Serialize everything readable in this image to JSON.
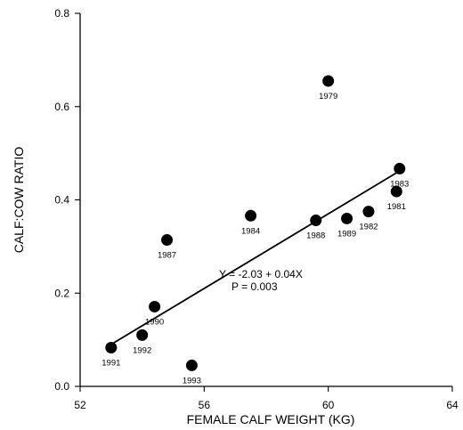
{
  "chart_data": {
    "type": "scatter",
    "title": "",
    "xlabel": "FEMALE CALF WEIGHT (KG)",
    "ylabel": "CALF:COW RATIO",
    "xlim": [
      52,
      64
    ],
    "ylim": [
      0.0,
      0.8
    ],
    "x_ticks": [
      52,
      56,
      60,
      64
    ],
    "x_tick_labels": [
      "52",
      "56",
      "60",
      "64"
    ],
    "y_ticks": [
      0.0,
      0.2,
      0.4,
      0.6,
      0.8
    ],
    "y_tick_labels": [
      "0.0",
      "0.2",
      "0.4",
      "0.6",
      "0.8"
    ],
    "grid": false,
    "points": [
      {
        "label": "1979",
        "x": 60.0,
        "y": 0.655
      },
      {
        "label": "1983",
        "x": 62.3,
        "y": 0.467
      },
      {
        "label": "1981",
        "x": 62.2,
        "y": 0.418
      },
      {
        "label": "1984",
        "x": 57.5,
        "y": 0.366
      },
      {
        "label": "1988",
        "x": 59.6,
        "y": 0.356
      },
      {
        "label": "1989",
        "x": 60.6,
        "y": 0.36
      },
      {
        "label": "1982",
        "x": 61.3,
        "y": 0.375
      },
      {
        "label": "1987",
        "x": 54.8,
        "y": 0.314
      },
      {
        "label": "1990",
        "x": 54.4,
        "y": 0.171
      },
      {
        "label": "1992",
        "x": 54.0,
        "y": 0.11
      },
      {
        "label": "1991",
        "x": 53.0,
        "y": 0.083
      },
      {
        "label": "1993",
        "x": 55.6,
        "y": 0.045
      }
    ],
    "regression": {
      "x_start": 53.0,
      "x_end": 62.2
    },
    "annotations": [
      "Y = -2.03 + 0.04X",
      "P = 0.003"
    ]
  }
}
